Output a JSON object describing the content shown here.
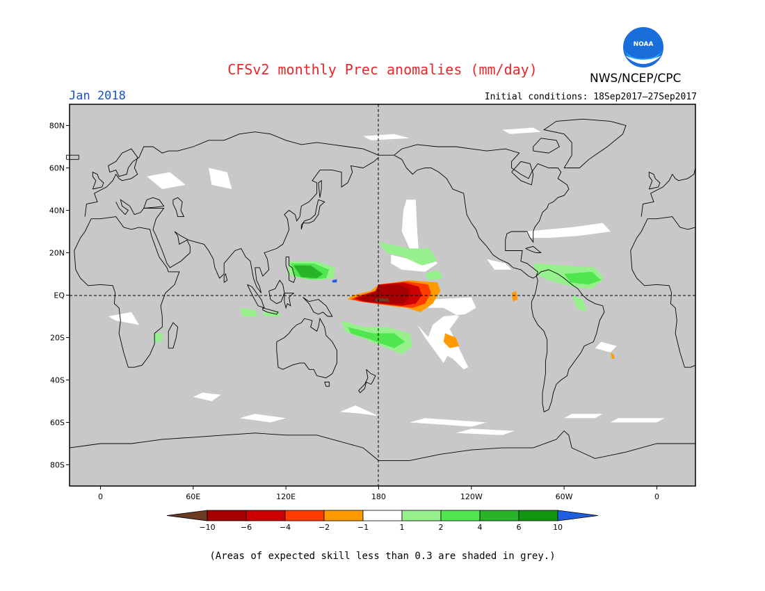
{
  "title": "CFSv2 monthly Prec anomalies (mm/day)",
  "agency": "NWS/NCEP/CPC",
  "logo_text": "NOAA",
  "valid_month": "Jan 2018",
  "initial_conditions": "Initial conditions: 18Sep2017–27Sep2017",
  "footnote": "(Areas of expected skill less than 0.3 are shaded in grey.)",
  "map": {
    "lon_range": [
      -20,
      385
    ],
    "lat_range": [
      -90,
      90
    ],
    "y_ticks": [
      {
        "lat": 80,
        "label": "80N"
      },
      {
        "lat": 60,
        "label": "60N"
      },
      {
        "lat": 40,
        "label": "40N"
      },
      {
        "lat": 20,
        "label": "20N"
      },
      {
        "lat": 0,
        "label": "EQ"
      },
      {
        "lat": -20,
        "label": "20S"
      },
      {
        "lat": -40,
        "label": "40S"
      },
      {
        "lat": -60,
        "label": "60S"
      },
      {
        "lat": -80,
        "label": "80S"
      }
    ],
    "x_ticks": [
      {
        "lon": 0,
        "label": "0"
      },
      {
        "lon": 60,
        "label": "60E"
      },
      {
        "lon": 120,
        "label": "120E"
      },
      {
        "lon": 180,
        "label": "180"
      },
      {
        "lon": 240,
        "label": "120W"
      },
      {
        "lon": 300,
        "label": "60W"
      },
      {
        "lon": 360,
        "label": "0"
      }
    ],
    "colors": {
      "skill_grey": "#c8c8c8",
      "ocean_white": "#ffffff",
      "coast": "#000000"
    }
  },
  "colorbar": {
    "boundaries": [
      "−10",
      "−6",
      "−4",
      "−2",
      "−1",
      "1",
      "2",
      "4",
      "6",
      "10"
    ],
    "colors": [
      "#6b3a22",
      "#a80000",
      "#cc0000",
      "#ff3c00",
      "#ff9a00",
      "#ffffff",
      "#96f08c",
      "#50e650",
      "#28b428",
      "#129612",
      "#2060e0"
    ]
  }
}
